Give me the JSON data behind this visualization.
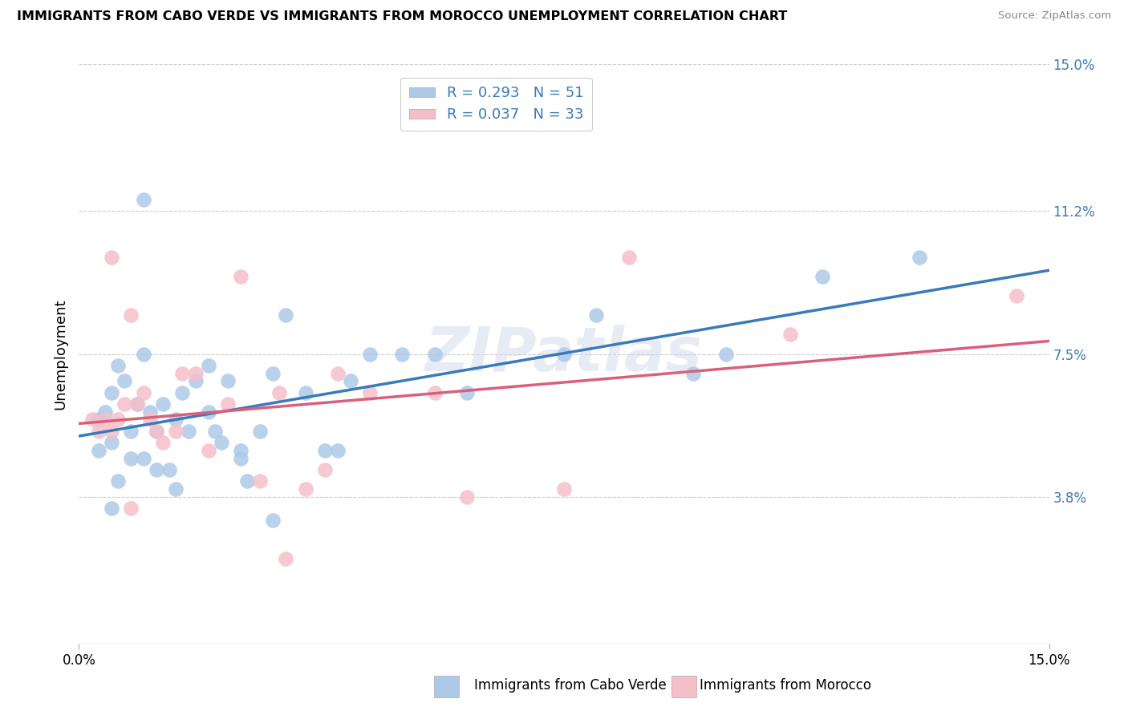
{
  "title": "IMMIGRANTS FROM CABO VERDE VS IMMIGRANTS FROM MOROCCO UNEMPLOYMENT CORRELATION CHART",
  "source": "Source: ZipAtlas.com",
  "ylabel": "Unemployment",
  "xlim": [
    0.0,
    15.0
  ],
  "ylim": [
    0.0,
    15.0
  ],
  "y_ticks": [
    3.8,
    7.5,
    11.2,
    15.0
  ],
  "y_tick_labels": [
    "3.8%",
    "7.5%",
    "11.2%",
    "15.0%"
  ],
  "legend_blue_label": "Immigrants from Cabo Verde",
  "legend_pink_label": "Immigrants from Morocco",
  "R_blue": 0.293,
  "N_blue": 51,
  "R_pink": 0.037,
  "N_pink": 33,
  "blue_color": "#aec9e8",
  "pink_color": "#f5bfc9",
  "blue_line_color": "#3a7ab8",
  "pink_line_color": "#d9607a",
  "tick_color": "#3a7ab8",
  "background_color": "#ffffff",
  "watermark": "ZIPatlas",
  "cabo_verde_x": [
    0.3,
    0.4,
    0.5,
    0.5,
    0.6,
    0.7,
    0.8,
    0.9,
    1.0,
    1.0,
    1.1,
    1.2,
    1.3,
    1.4,
    1.5,
    1.6,
    1.7,
    1.8,
    2.0,
    2.1,
    2.2,
    2.3,
    2.5,
    2.6,
    2.8,
    3.0,
    3.2,
    3.5,
    3.8,
    4.0,
    4.2,
    4.5,
    5.0,
    5.5,
    6.0,
    7.5,
    8.0,
    9.5,
    10.0,
    11.5,
    13.0,
    0.3,
    0.5,
    0.6,
    0.8,
    1.0,
    1.2,
    1.5,
    2.0,
    2.5,
    3.0
  ],
  "cabo_verde_y": [
    5.8,
    6.0,
    6.5,
    5.2,
    7.2,
    6.8,
    5.5,
    6.2,
    7.5,
    4.8,
    6.0,
    5.5,
    6.2,
    4.5,
    5.8,
    6.5,
    5.5,
    6.8,
    7.2,
    5.5,
    5.2,
    6.8,
    5.0,
    4.2,
    5.5,
    7.0,
    8.5,
    6.5,
    5.0,
    5.0,
    6.8,
    7.5,
    7.5,
    7.5,
    6.5,
    7.5,
    8.5,
    7.0,
    7.5,
    9.5,
    10.0,
    5.0,
    3.5,
    4.2,
    4.8,
    11.5,
    4.5,
    4.0,
    6.0,
    4.8,
    3.2
  ],
  "morocco_x": [
    0.2,
    0.3,
    0.4,
    0.5,
    0.6,
    0.7,
    0.8,
    0.9,
    1.0,
    1.1,
    1.2,
    1.3,
    1.5,
    1.6,
    1.8,
    2.0,
    2.3,
    2.5,
    2.8,
    3.1,
    3.5,
    3.8,
    4.0,
    4.5,
    5.5,
    6.0,
    7.5,
    8.5,
    11.0,
    14.5,
    0.5,
    0.8,
    3.2
  ],
  "morocco_y": [
    5.8,
    5.5,
    5.8,
    5.5,
    5.8,
    6.2,
    8.5,
    6.2,
    6.5,
    5.8,
    5.5,
    5.2,
    5.5,
    7.0,
    7.0,
    5.0,
    6.2,
    9.5,
    4.2,
    6.5,
    4.0,
    4.5,
    7.0,
    6.5,
    6.5,
    3.8,
    4.0,
    10.0,
    8.0,
    9.0,
    10.0,
    3.5,
    2.2
  ]
}
